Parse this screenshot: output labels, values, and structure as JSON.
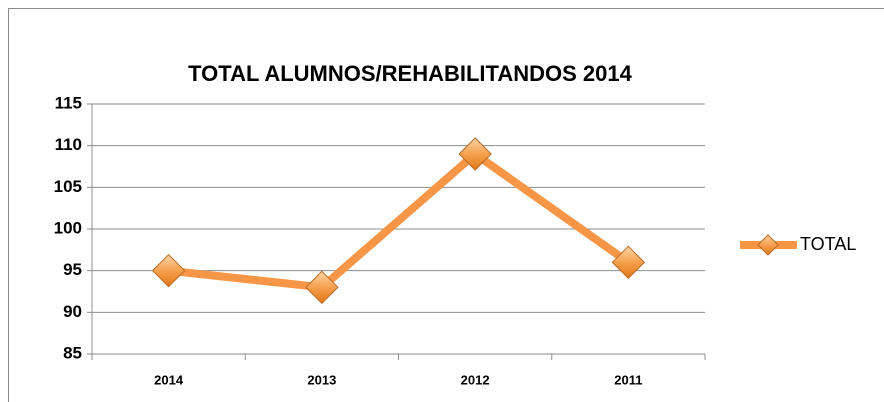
{
  "chart_data": {
    "type": "line",
    "title": "TOTAL ALUMNOS/REHABILITANDOS 2014",
    "categories": [
      "2014",
      "2013",
      "2012",
      "2011"
    ],
    "series": [
      {
        "name": "TOTAL",
        "color": "#f79646",
        "values": [
          95,
          93,
          109,
          96
        ]
      }
    ],
    "ylim": [
      85,
      115
    ],
    "yticks": [
      85,
      90,
      95,
      100,
      105,
      110,
      115
    ],
    "grid": true,
    "legend": "right"
  }
}
